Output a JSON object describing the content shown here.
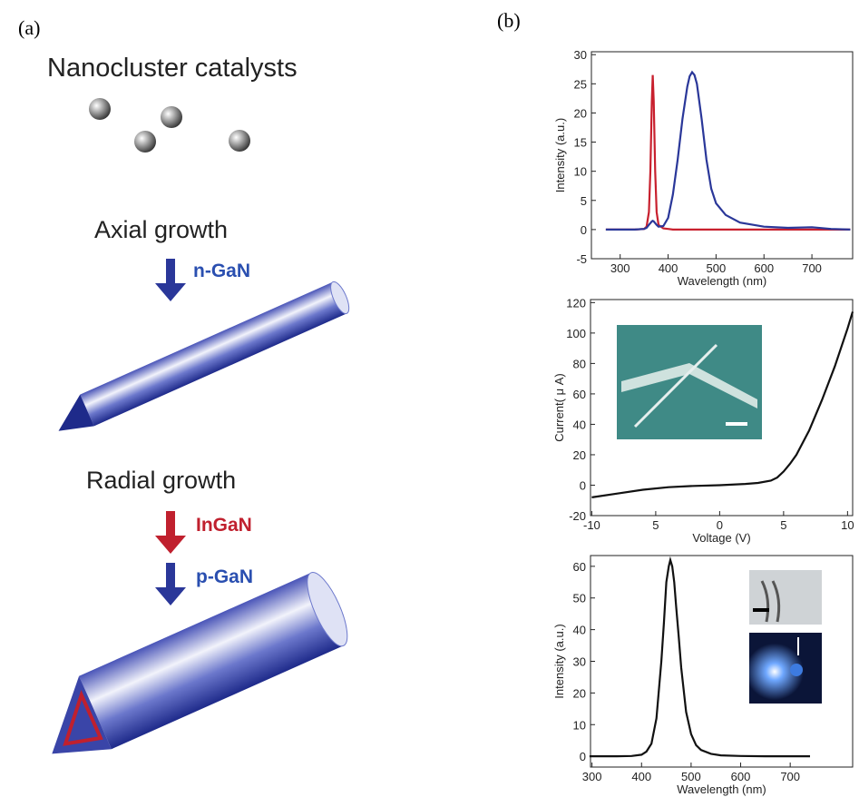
{
  "panels": {
    "a": "(a)",
    "b": "(b)"
  },
  "diagram": {
    "catalysts": "Nanocluster catalysts",
    "axial": "Axial growth",
    "n_gan": "n-GaN",
    "radial": "Radial growth",
    "ingan": "InGaN",
    "p_gan": "p-GaN"
  },
  "chart_data": [
    {
      "type": "line",
      "xlabel": "Wavelength (nm)",
      "ylabel": "Intensity (a.u.)",
      "x": [
        270,
        300,
        330,
        350,
        355,
        360,
        363,
        366,
        368,
        370,
        373,
        376,
        380,
        390,
        400,
        410,
        420,
        430,
        440,
        445,
        450,
        455,
        460,
        470,
        480,
        490,
        500,
        520,
        550,
        600,
        650,
        700,
        740,
        780
      ],
      "series": [
        {
          "color": "#c8202e",
          "values": [
            0,
            0,
            0,
            0.1,
            0.5,
            3,
            10,
            22,
            26.5,
            22,
            10,
            3,
            0.8,
            0.2,
            0.1,
            0,
            0,
            0,
            0,
            0,
            0,
            0,
            0,
            0,
            0,
            0,
            0,
            0,
            0,
            0,
            0,
            0,
            0,
            0
          ]
        },
        {
          "color": "#2a3799",
          "values": [
            0,
            0,
            0,
            0.1,
            0.3,
            0.8,
            1.1,
            1.4,
            1.5,
            1.4,
            1.1,
            0.8,
            0.5,
            0.6,
            2,
            6,
            12,
            19,
            24.5,
            26.3,
            27,
            26.5,
            25,
            19,
            12,
            7,
            4.5,
            2.5,
            1.2,
            0.5,
            0.3,
            0.4,
            0.1,
            0
          ]
        }
      ],
      "xlim": [
        240,
        785
      ],
      "ylim": [
        -5,
        30.5
      ],
      "xticks": [
        300,
        400,
        500,
        600,
        700
      ],
      "yticks": [
        -5,
        0,
        5,
        10,
        15,
        20,
        25,
        30
      ]
    },
    {
      "type": "line",
      "xlabel": "Voltage (V)",
      "ylabel": "Current( μ A)",
      "x": [
        -10,
        -8,
        -6,
        -4,
        -2,
        0,
        2,
        3,
        4,
        4.5,
        5,
        5.5,
        6,
        7,
        8,
        9,
        10,
        10.4
      ],
      "series": [
        {
          "color": "#111111",
          "values": [
            -8,
            -5.5,
            -3,
            -1.3,
            -0.5,
            0,
            0.8,
            1.5,
            3,
            5,
            9,
            14,
            20,
            36,
            56,
            78,
            103,
            114
          ]
        }
      ],
      "xlim": [
        -10.1,
        10.4
      ],
      "ylim": [
        -20,
        122
      ],
      "xticks": [
        -10,
        {
          "value": -5,
          "label": "5"
        },
        0,
        5,
        10
      ],
      "yticks": [
        -20,
        0,
        20,
        40,
        60,
        80,
        100,
        120
      ]
    },
    {
      "type": "line",
      "xlabel": "Wavelength (nm)",
      "ylabel": "Intensity (a.u.)",
      "x": [
        295,
        320,
        350,
        380,
        400,
        410,
        420,
        430,
        440,
        445,
        450,
        455,
        458,
        462,
        466,
        470,
        475,
        480,
        490,
        500,
        510,
        520,
        540,
        560,
        600,
        650,
        700,
        740
      ],
      "series": [
        {
          "color": "#111111",
          "values": [
            0,
            0,
            0,
            0.1,
            0.5,
            1.5,
            4,
            12,
            30,
            42,
            55,
            60,
            62,
            60,
            55,
            47,
            38,
            28,
            14,
            7,
            3.5,
            2,
            0.8,
            0.3,
            0.1,
            0,
            0,
            0
          ]
        }
      ],
      "xlim": [
        297,
        826
      ],
      "ylim": [
        -3.4,
        63.4
      ],
      "xticks": [
        300,
        400,
        500,
        600,
        700
      ],
      "yticks": [
        0,
        10,
        20,
        30,
        40,
        50,
        60
      ]
    }
  ]
}
